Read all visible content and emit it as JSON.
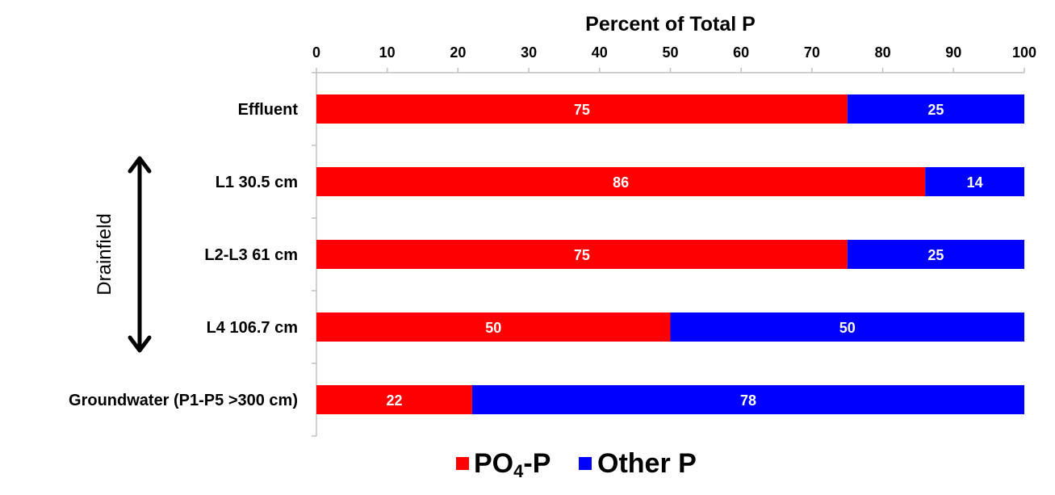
{
  "chart_data": {
    "type": "bar",
    "orientation": "horizontal",
    "stacked": true,
    "title": "",
    "xlabel": "Percent of Total P",
    "xaxis_position": "top",
    "xlim": [
      0,
      100
    ],
    "xticks": [
      0,
      10,
      20,
      30,
      40,
      50,
      60,
      70,
      80,
      90,
      100
    ],
    "categories": [
      "Effluent",
      "L1 30.5 cm",
      "L2-L3 61 cm",
      "L4 106.7 cm",
      "Groundwater (P1-P5 >300 cm)"
    ],
    "series": [
      {
        "name": "PO4-P",
        "legend_main": "PO",
        "legend_sub": "4",
        "legend_tail": "-P",
        "color": "#ff0000",
        "values": [
          75,
          86,
          75,
          50,
          22
        ]
      },
      {
        "name": "Other P",
        "color": "#0000ff",
        "values": [
          25,
          14,
          25,
          50,
          78
        ]
      }
    ],
    "data_labels": true,
    "grid": false,
    "legend_position": "bottom",
    "annotation": {
      "text": "Drainfield",
      "spans_categories": [
        "L1 30.5 cm",
        "L4 106.7 cm"
      ],
      "arrow": "double-headed vertical"
    }
  }
}
